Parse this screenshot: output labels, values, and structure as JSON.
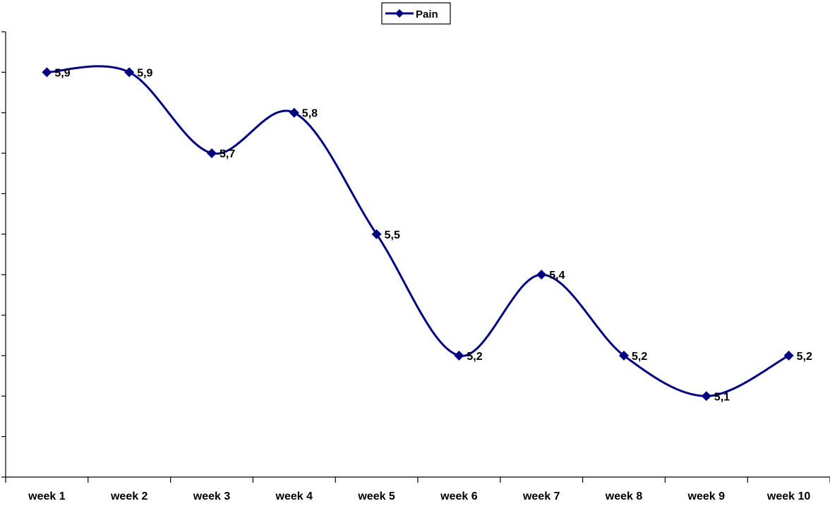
{
  "chart_data": {
    "type": "line",
    "title": "",
    "xlabel": "",
    "ylabel": "",
    "categories": [
      "week 1",
      "week 2",
      "week 3",
      "week 4",
      "week 5",
      "week 6",
      "week 7",
      "week 8",
      "week 9",
      "week 10"
    ],
    "series": [
      {
        "name": "Pain",
        "values": [
          5.9,
          5.9,
          5.7,
          5.8,
          5.5,
          5.2,
          5.4,
          5.2,
          5.1,
          5.2
        ],
        "labels": [
          "5,9",
          "5,9",
          "5,7",
          "5,8",
          "5,5",
          "5,2",
          "5,4",
          "5,2",
          "5,1",
          "5,2"
        ],
        "color": "#000080",
        "marker": "diamond",
        "smoothed": true
      }
    ],
    "ylim": [
      4.9,
      6.0
    ],
    "y_tick_step": 0.1,
    "y_tick_labels_visible": false,
    "grid": false,
    "legend": "top-center",
    "data_labels": true
  }
}
